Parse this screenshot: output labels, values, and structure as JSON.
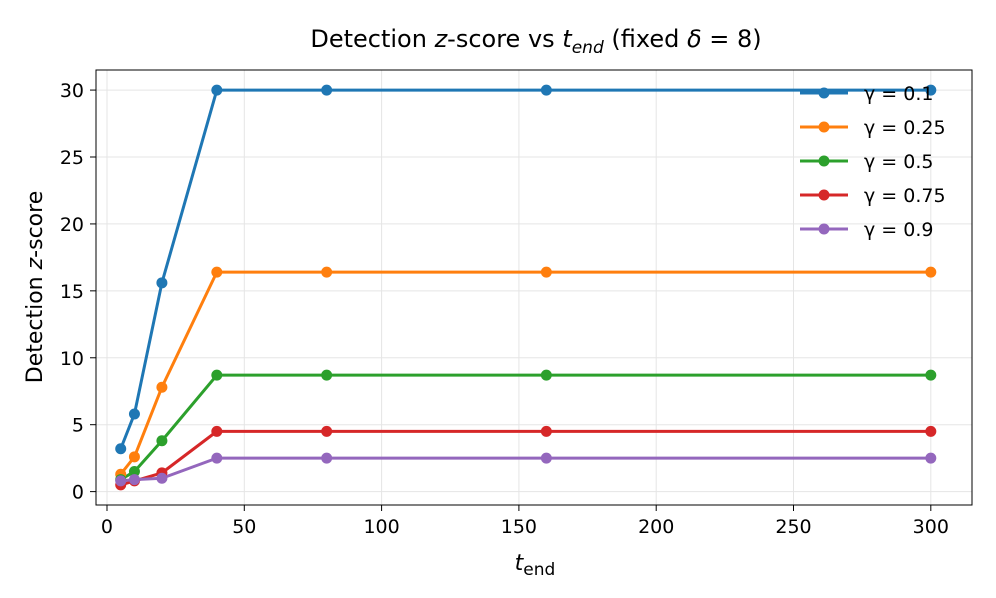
{
  "chart_data": {
    "type": "line",
    "title": {
      "prefix": "Detection ",
      "z": "z",
      "mid": "-score vs ",
      "t": "t",
      "t_sub": "end",
      "suffix_open": " (fixed ",
      "delta": "δ",
      "eq": " = 8)"
    },
    "xlabel": {
      "t": "t",
      "sub": "end"
    },
    "ylabel": {
      "prefix": "Detection ",
      "z": "z",
      "suffix": "-score"
    },
    "xlim": [
      -4,
      315
    ],
    "ylim": [
      -1,
      31.5
    ],
    "xticks": [
      0,
      50,
      100,
      150,
      200,
      250,
      300
    ],
    "yticks": [
      0,
      5,
      10,
      15,
      20,
      25,
      30
    ],
    "grid": true,
    "legend_position": "top-right",
    "x": [
      5,
      10,
      20,
      40,
      80,
      160,
      300
    ],
    "series": [
      {
        "name": "γ = 0.1",
        "gamma": "0.1",
        "color": "#1f77b4",
        "values": [
          3.2,
          5.8,
          15.6,
          30.0,
          30.0,
          30.0,
          30.0
        ]
      },
      {
        "name": "γ = 0.25",
        "gamma": "0.25",
        "color": "#ff7f0e",
        "values": [
          1.3,
          2.6,
          7.8,
          16.4,
          16.4,
          16.4,
          16.4
        ]
      },
      {
        "name": "γ = 0.5",
        "gamma": "0.5",
        "color": "#2ca02c",
        "values": [
          0.9,
          1.5,
          3.8,
          8.7,
          8.7,
          8.7,
          8.7
        ]
      },
      {
        "name": "γ = 0.75",
        "gamma": "0.75",
        "color": "#d62728",
        "values": [
          0.5,
          0.8,
          1.4,
          4.5,
          4.5,
          4.5,
          4.5
        ]
      },
      {
        "name": "γ = 0.9",
        "gamma": "0.9",
        "color": "#9467bd",
        "values": [
          0.8,
          0.9,
          1.0,
          2.5,
          2.5,
          2.5,
          2.5
        ]
      }
    ]
  }
}
